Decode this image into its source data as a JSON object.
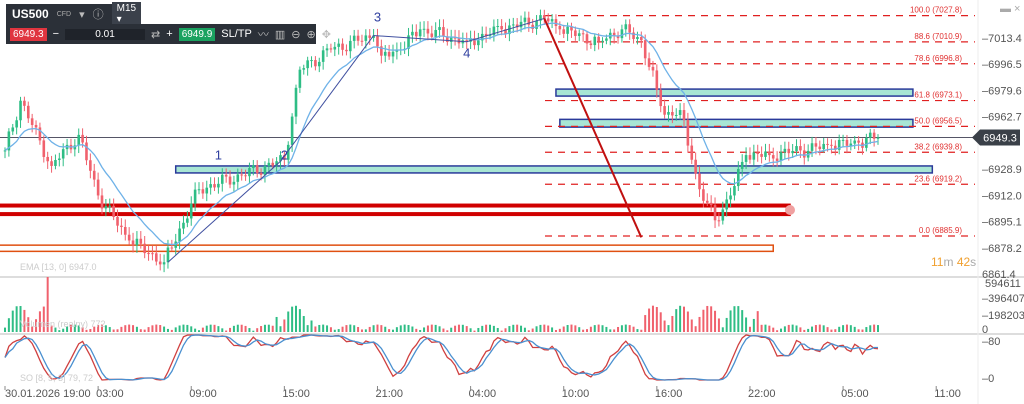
{
  "toolbar": {
    "symbol": "US500",
    "symbol_type": "CFD",
    "timeframe": "M15",
    "sell_price": "6949.3",
    "quantity": "0.01",
    "buy_price": "6949.9",
    "sltp_label": "SL/TP",
    "minus": "−",
    "plus": "+"
  },
  "timer": {
    "minutes": "11",
    "m": "m",
    "seconds": "42",
    "s": "s"
  },
  "indicators": {
    "ema": "EMA [13, 0] 6947.0",
    "volume": "Volumen (realny) 772",
    "so": "SO [8, 5, 3] 79, 72"
  },
  "colors": {
    "up": "#2ebd85",
    "down": "#f0616d",
    "ema": "#6fb2e8",
    "fib": "#e02020",
    "zone": "#a8e6d4",
    "zone_border": "#2a3a9a",
    "red_zone": "#d00000",
    "orange_zone": "#e05010"
  },
  "chart_data": {
    "type": "candlestick",
    "symbol": "US500",
    "timeframe": "M15",
    "y_ticks": [
      "7013.4",
      "6996.5",
      "6979.6",
      "6962.7",
      "6928.9",
      "6912.0",
      "6895.1",
      "6878.2",
      "6861.4"
    ],
    "y_tick_values": [
      7013.4,
      6996.5,
      6979.6,
      6962.7,
      6928.9,
      6912.0,
      6895.1,
      6878.2,
      6861.4
    ],
    "ylim": [
      6859,
      7040
    ],
    "x_ticks": [
      "30.01.2026 19:00",
      "03:00",
      "09:00",
      "15:00",
      "21:00",
      "04:00",
      "10:00",
      "16:00",
      "22:00",
      "05:00",
      "11:00"
    ],
    "x_tick_index": [
      0,
      24,
      48,
      72,
      96,
      120,
      144,
      168,
      192,
      216,
      240
    ],
    "current_price": "6949.3",
    "current_price_value": 6949.3,
    "close_keypoints": [
      [
        0,
        6941
      ],
      [
        4,
        6973
      ],
      [
        12,
        6931
      ],
      [
        19,
        6951
      ],
      [
        24,
        6912
      ],
      [
        32,
        6883
      ],
      [
        41,
        6869
      ],
      [
        50,
        6916
      ],
      [
        61,
        6925
      ],
      [
        72,
        6935
      ],
      [
        76,
        6993
      ],
      [
        84,
        7006
      ],
      [
        95,
        7015
      ],
      [
        97,
        7002
      ],
      [
        102,
        7006
      ],
      [
        107,
        7019
      ],
      [
        119,
        7011
      ],
      [
        128,
        7019
      ],
      [
        139,
        7026
      ],
      [
        143,
        7019
      ],
      [
        153,
        7011
      ],
      [
        159,
        7019
      ],
      [
        164,
        7012
      ],
      [
        168,
        6980
      ],
      [
        170,
        6964
      ],
      [
        174,
        6967
      ],
      [
        177,
        6935
      ],
      [
        179,
        6916
      ],
      [
        183,
        6896
      ],
      [
        187,
        6912
      ],
      [
        191,
        6938
      ],
      [
        197,
        6938
      ],
      [
        205,
        6941
      ],
      [
        213,
        6944
      ],
      [
        220,
        6946
      ],
      [
        225,
        6949.3
      ]
    ],
    "fib_levels": [
      {
        "label": "100.0 (7027.8)",
        "price": 7027.8
      },
      {
        "label": "88.6 (7010.9)",
        "price": 7010.9
      },
      {
        "label": "78.6 (6996.8)",
        "price": 6996.8
      },
      {
        "label": "61.8 (6973.1)",
        "price": 6973.1
      },
      {
        "label": "50.0 (6956.5)",
        "price": 6956.5
      },
      {
        "label": "38.2 (6939.8)",
        "price": 6939.8
      },
      {
        "label": "23.6 (6919.2)",
        "price": 6919.2
      },
      {
        "label": "0.0 (6885.9)",
        "price": 6885.9
      }
    ],
    "zones": [
      {
        "kind": "teal",
        "from_index": 142,
        "to_index": 234,
        "top": 6980.5,
        "bottom": 6976
      },
      {
        "kind": "teal",
        "from_index": 143,
        "to_index": 234,
        "top": 6961,
        "bottom": 6956
      },
      {
        "kind": "teal",
        "from_index": 44,
        "to_index": 239,
        "top": 6931,
        "bottom": 6926.5
      },
      {
        "kind": "red",
        "from_index": -2,
        "to_index": 202,
        "top": 6905.5,
        "bottom": 6900
      },
      {
        "kind": "orange",
        "from_index": -2,
        "to_index": 198,
        "top": 6880,
        "bottom": 6876
      }
    ],
    "wave_labels": [
      {
        "text": "1",
        "index": 55,
        "price": 6935
      },
      {
        "text": "2",
        "index": 72,
        "price": 6935
      },
      {
        "text": "3",
        "index": 96,
        "price": 7024
      },
      {
        "text": "4",
        "index": 119,
        "price": 7001
      }
    ],
    "wave_path": [
      [
        42,
        6869
      ],
      [
        71,
        6934
      ],
      [
        95,
        7015
      ],
      [
        119,
        7011
      ],
      [
        139,
        7026
      ]
    ],
    "trend_line": [
      [
        139,
        7026
      ],
      [
        164,
        6885
      ]
    ],
    "volume_ticks": [
      "594611",
      "396407",
      "198203",
      "0"
    ],
    "so_ticks": [
      "80",
      "0"
    ]
  }
}
